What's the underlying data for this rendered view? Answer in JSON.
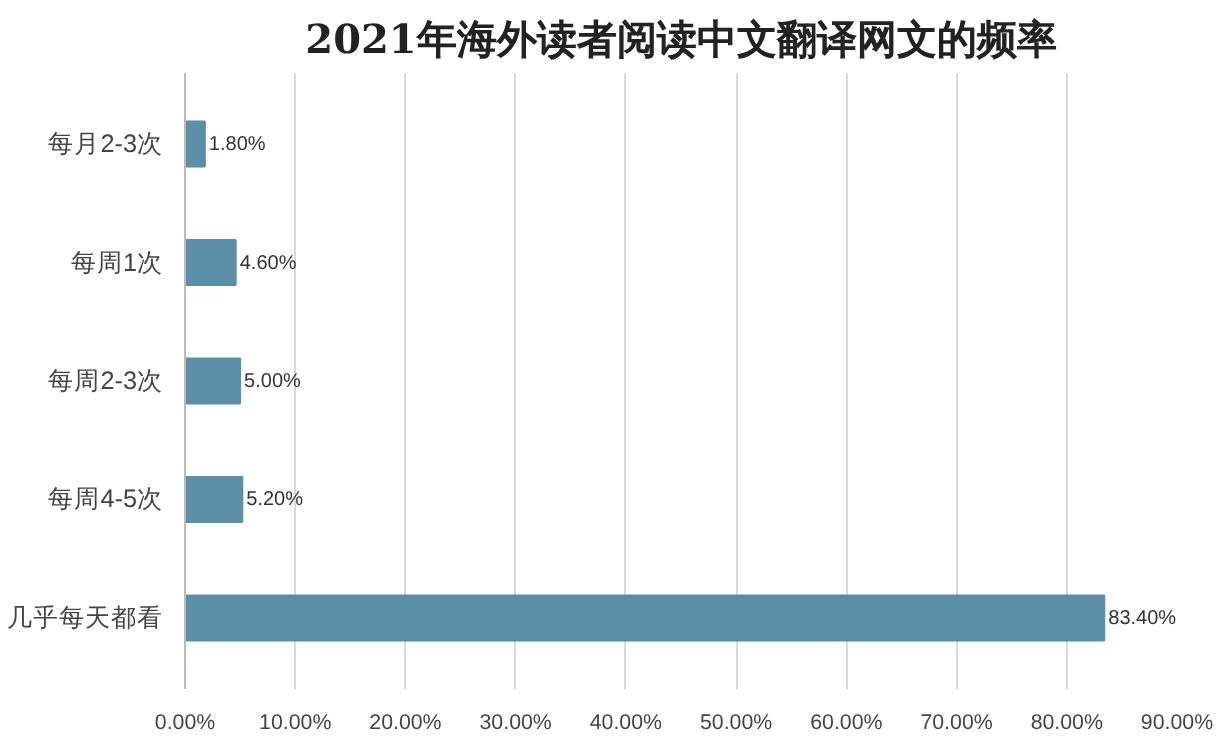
{
  "chart_data": {
    "type": "bar",
    "orientation": "horizontal",
    "title": "2021年海外读者阅读中文翻译网文的频率",
    "categories": [
      "每月2-3次",
      "每周1次",
      "每周2-3次",
      "每周4-5次",
      "几乎每天都看"
    ],
    "values": [
      1.8,
      4.6,
      5.0,
      5.2,
      83.4
    ],
    "value_labels": [
      "1.80%",
      "4.60%",
      "5.00%",
      "5.20%",
      "83.40%"
    ],
    "color": "#5b8fa8",
    "xlim": [
      0,
      90
    ],
    "xticks": [
      {
        "value": 0,
        "label": "0.00%"
      },
      {
        "value": 10,
        "label": "10.00%"
      },
      {
        "value": 20,
        "label": "20.00%"
      },
      {
        "value": 30,
        "label": "30.00%"
      },
      {
        "value": 40,
        "label": "40.00%"
      },
      {
        "value": 50,
        "label": "50.00%"
      },
      {
        "value": 60,
        "label": "60.00%"
      },
      {
        "value": 70,
        "label": "70.00%"
      },
      {
        "value": 80,
        "label": "80.00%"
      },
      {
        "value": 90,
        "label": "90.00%"
      }
    ],
    "grid": "x"
  }
}
